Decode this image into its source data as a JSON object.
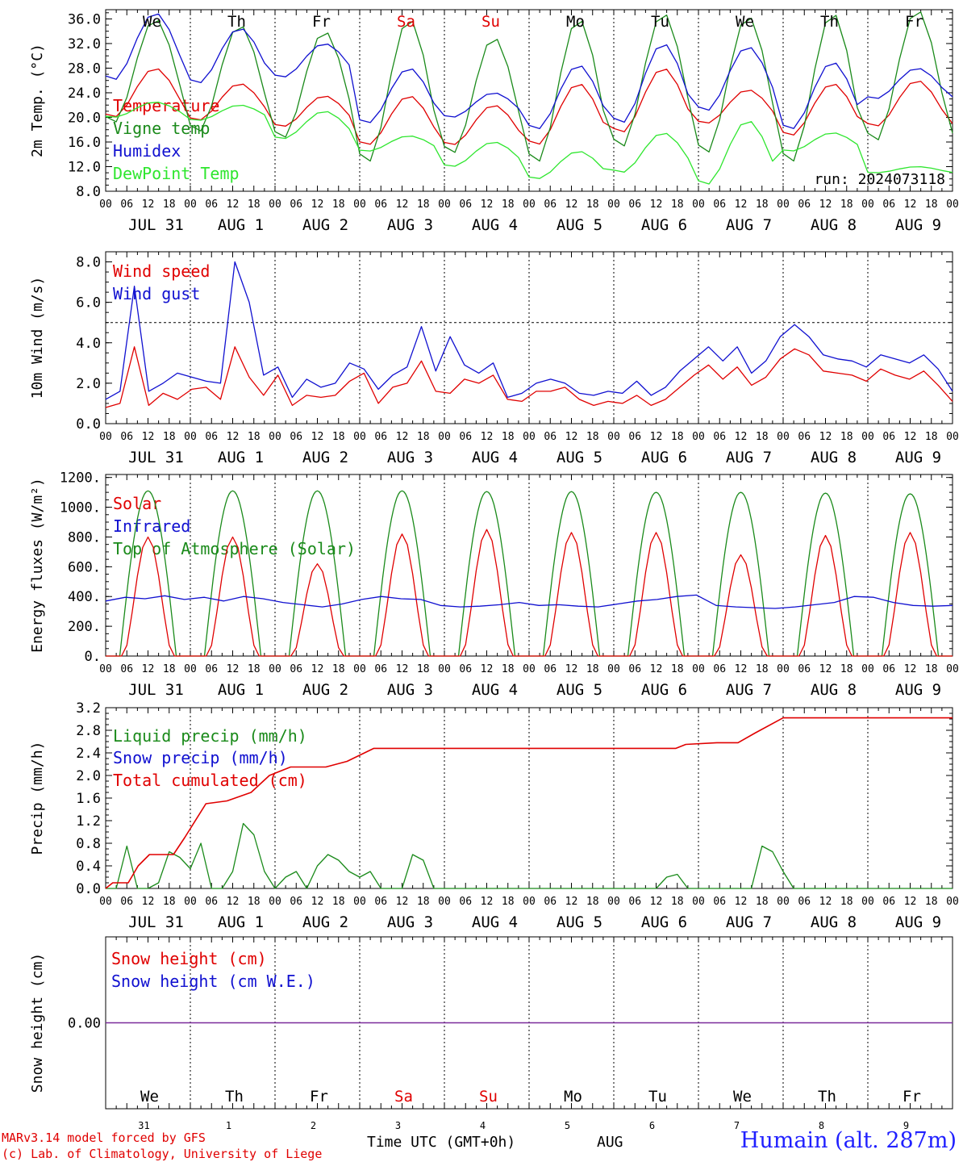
{
  "colors": {
    "red": "#e00000",
    "green": "#1a8a1a",
    "blue": "#1010d0",
    "lightgreen": "#2ee62e",
    "purple": "#7a2a9a"
  },
  "days": {
    "top": [
      "We",
      "Th",
      "Fr",
      "Sa",
      "Su",
      "Mo",
      "Tu",
      "We",
      "Th",
      "Fr"
    ],
    "weekend": [
      false,
      false,
      false,
      true,
      true,
      false,
      false,
      false,
      false,
      false
    ],
    "dates": [
      "JUL 31",
      "AUG  1",
      "AUG  2",
      "AUG  3",
      "AUG  4",
      "AUG  5",
      "AUG  6",
      "AUG  7",
      "AUG  8",
      "AUG  9"
    ],
    "hour_ticks": [
      "00",
      "06",
      "12",
      "18"
    ],
    "numbers": [
      "31",
      "1",
      "2",
      "3",
      "4",
      "5",
      "6",
      "7",
      "8",
      "9"
    ]
  },
  "chart_data": [
    {
      "type": "line",
      "ylabel": "2m Temp. (°C)",
      "ylim": [
        8,
        37.5
      ],
      "yticks": [
        "8.0",
        "12.0",
        "16.0",
        "20.0",
        "24.0",
        "28.0",
        "32.0",
        "36.0"
      ],
      "ytick_values": [
        8,
        12,
        16,
        20,
        24,
        28,
        32,
        36
      ],
      "annotation": "run: 2024073118",
      "series": [
        {
          "name": "Temperature",
          "color": "red",
          "min": [
            20,
            19.5,
            18.5,
            15.5,
            15.5,
            15.5,
            17.5,
            19,
            17,
            18.5
          ],
          "max": [
            28,
            25.5,
            23.5,
            23.5,
            22,
            25.5,
            28,
            24.5,
            25.5,
            26
          ]
        },
        {
          "name": "Vigne temp",
          "color": "green",
          "min": [
            19,
            17.5,
            16.5,
            12.5,
            14,
            12.5,
            15,
            14,
            12.5,
            16
          ],
          "max": [
            36,
            35,
            34,
            36,
            33,
            36,
            37,
            36.5,
            37,
            37.5
          ]
        },
        {
          "name": "Humidex",
          "color": "blue",
          "min": [
            26,
            25.5,
            26.5,
            19,
            20,
            18,
            19,
            21,
            18,
            23
          ],
          "max": [
            37,
            34.5,
            32,
            28,
            24,
            28.5,
            32,
            31.5,
            29,
            28
          ]
        },
        {
          "name": "DewPoint Temp",
          "color": "lightgreen",
          "min": [
            20,
            19.5,
            16.5,
            14.5,
            12,
            10,
            11,
            9,
            14.5,
            11
          ],
          "max": [
            22.5,
            22,
            21,
            17,
            16,
            14.5,
            17.5,
            19.5,
            17.5,
            12
          ]
        }
      ]
    },
    {
      "type": "line",
      "ylabel": "10m Wind (m/s)",
      "ylim": [
        0,
        8.5
      ],
      "yticks": [
        "0.0",
        "2.0",
        "4.0",
        "6.0",
        "8.0"
      ],
      "ytick_values": [
        0,
        2,
        4,
        6,
        8
      ],
      "reference_line": 5,
      "series": [
        {
          "name": "Wind speed",
          "color": "red",
          "values": [
            0.8,
            1.0,
            3.8,
            0.9,
            1.5,
            1.2,
            1.7,
            1.8,
            1.2,
            3.8,
            2.3,
            1.4,
            2.4,
            0.9,
            1.4,
            1.3,
            1.4,
            2.1,
            2.5,
            1.0,
            1.8,
            2.0,
            3.1,
            1.6,
            1.5,
            2.2,
            2.0,
            2.4,
            1.2,
            1.1,
            1.6,
            1.6,
            1.8,
            1.2,
            0.9,
            1.1,
            1.0,
            1.4,
            0.9,
            1.2,
            1.8,
            2.4,
            2.9,
            2.2,
            2.8,
            1.9,
            2.3,
            3.2,
            3.7,
            3.4,
            2.6,
            2.5,
            2.4,
            2.1,
            2.7,
            2.4,
            2.2,
            2.6,
            1.9,
            1.1
          ]
        },
        {
          "name": "Wind gust",
          "color": "blue",
          "values": [
            1.2,
            1.6,
            6.8,
            1.6,
            2.0,
            2.5,
            2.3,
            2.1,
            2.0,
            8.0,
            6.0,
            2.4,
            2.8,
            1.3,
            2.2,
            1.8,
            2.0,
            3.0,
            2.7,
            1.7,
            2.4,
            2.8,
            4.8,
            2.6,
            4.3,
            2.9,
            2.5,
            3.0,
            1.3,
            1.5,
            2.0,
            2.2,
            2.0,
            1.5,
            1.4,
            1.6,
            1.5,
            2.1,
            1.4,
            1.8,
            2.6,
            3.2,
            3.8,
            3.1,
            3.8,
            2.5,
            3.1,
            4.3,
            4.9,
            4.3,
            3.4,
            3.2,
            3.1,
            2.8,
            3.4,
            3.2,
            3.0,
            3.4,
            2.7,
            1.6
          ]
        }
      ]
    },
    {
      "type": "line",
      "ylabel": "Energy fluxes (W/m²)",
      "ylim": [
        0,
        1220
      ],
      "yticks": [
        "0.",
        "200.",
        "400.",
        "600.",
        "800.",
        "1000.",
        "1200."
      ],
      "ytick_values": [
        0,
        200,
        400,
        600,
        800,
        1000,
        1200
      ],
      "series": [
        {
          "name": "Solar",
          "color": "red",
          "daily_peak": [
            800,
            800,
            620,
            820,
            850,
            830,
            830,
            680,
            810,
            830
          ]
        },
        {
          "name": "Infrared",
          "color": "blue",
          "values": [
            370,
            395,
            385,
            405,
            380,
            395,
            370,
            400,
            385,
            360,
            345,
            330,
            350,
            380,
            400,
            385,
            380,
            340,
            330,
            335,
            345,
            360,
            340,
            345,
            335,
            330,
            350,
            370,
            380,
            400,
            410,
            340,
            330,
            325,
            320,
            330,
            345,
            360,
            400,
            395,
            360,
            340,
            335,
            340
          ]
        },
        {
          "name": "Top of Atmosphere (Solar)",
          "color": "green",
          "daily_peak": [
            1110,
            1110,
            1110,
            1110,
            1105,
            1105,
            1100,
            1100,
            1095,
            1090
          ]
        }
      ]
    },
    {
      "type": "line",
      "ylabel": "Precip (mm/h)",
      "ylim": [
        0,
        3.2
      ],
      "yticks": [
        "0.0",
        "0.4",
        "0.8",
        "1.2",
        "1.6",
        "2.0",
        "2.4",
        "2.8",
        "3.2"
      ],
      "ytick_values": [
        0,
        0.4,
        0.8,
        1.2,
        1.6,
        2.0,
        2.4,
        2.8,
        3.2
      ],
      "series": [
        {
          "name": "Liquid precip (mm/h)",
          "color": "green",
          "values": [
            0,
            0,
            0.75,
            0,
            0,
            0.1,
            0.65,
            0.55,
            0.35,
            0.8,
            0,
            0,
            0.3,
            1.15,
            0.95,
            0.3,
            0,
            0.2,
            0.3,
            0,
            0.4,
            0.6,
            0.5,
            0.3,
            0.2,
            0.3,
            0,
            0,
            0,
            0.6,
            0.5,
            0,
            0,
            0,
            0,
            0,
            0,
            0,
            0,
            0,
            0,
            0,
            0,
            0,
            0,
            0,
            0,
            0,
            0,
            0,
            0,
            0,
            0,
            0.2,
            0.25,
            0,
            0,
            0,
            0,
            0,
            0,
            0,
            0.75,
            0.65,
            0.3,
            0,
            0,
            0,
            0,
            0,
            0,
            0,
            0,
            0,
            0,
            0,
            0,
            0,
            0,
            0,
            0
          ]
        },
        {
          "name": "Snow precip (mm/h)",
          "color": "blue",
          "values": []
        },
        {
          "name": "Total cumulated (cm)",
          "color": "red",
          "steps": [
            [
              0,
              0
            ],
            [
              0.5,
              0.1
            ],
            [
              1.6,
              0.1
            ],
            [
              2.3,
              0.4
            ],
            [
              3.1,
              0.6
            ],
            [
              4.8,
              0.6
            ],
            [
              5.6,
              0.9
            ],
            [
              7.1,
              1.5
            ],
            [
              8.6,
              1.55
            ],
            [
              10.3,
              1.7
            ],
            [
              11.6,
              2.0
            ],
            [
              13.1,
              2.15
            ],
            [
              15.6,
              2.15
            ],
            [
              17.1,
              2.25
            ],
            [
              19.0,
              2.48
            ],
            [
              20.4,
              2.48
            ],
            [
              29.5,
              2.48
            ],
            [
              40.4,
              2.48
            ],
            [
              41.1,
              2.55
            ],
            [
              43.3,
              2.58
            ],
            [
              44.8,
              2.58
            ],
            [
              46.0,
              2.75
            ],
            [
              48.0,
              3.02
            ],
            [
              60,
              3.02
            ]
          ]
        }
      ]
    },
    {
      "type": "line",
      "ylabel": "Snow height (cm)",
      "yticks": [
        "0.00"
      ],
      "ytick_values": [
        0
      ],
      "series": [
        {
          "name": "Snow height (cm)",
          "color": "red",
          "values": [
            0,
            0
          ]
        },
        {
          "name": "Snow height (cm W.E.)",
          "color": "blue",
          "values": [
            0,
            0
          ]
        }
      ]
    }
  ],
  "footer": {
    "credit1": "MARv3.14 model forced by GFS",
    "credit2": "(c) Lab. of Climatology, University of Liege",
    "time_label": "Time UTC (GMT+0h)",
    "month": "AUG",
    "station": "Humain (alt. 287m)"
  }
}
